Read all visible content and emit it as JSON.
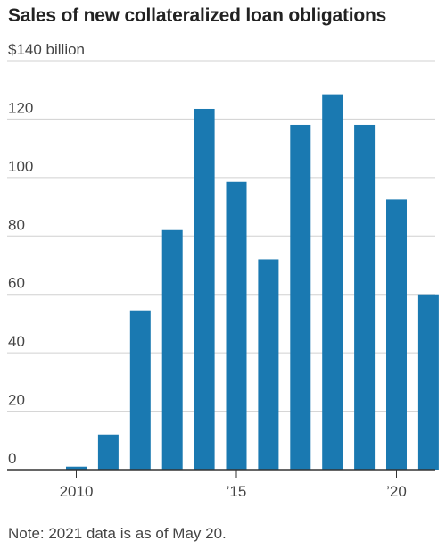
{
  "chart_data": {
    "type": "bar",
    "title": "Sales of new collateralized loan obligations",
    "unit_label": "$140 billion",
    "note": "Note: 2021 data is as of May 20.",
    "xlabel": "",
    "ylabel": "",
    "ylim": [
      0,
      140
    ],
    "y_ticks": [
      {
        "value": 0,
        "label": "0"
      },
      {
        "value": 20,
        "label": "20"
      },
      {
        "value": 40,
        "label": "40"
      },
      {
        "value": 60,
        "label": "60"
      },
      {
        "value": 80,
        "label": "80"
      },
      {
        "value": 100,
        "label": "100"
      },
      {
        "value": 120,
        "label": "120"
      },
      {
        "value": 140,
        "label": "$140 billion"
      }
    ],
    "categories": [
      "2010",
      "2011",
      "2012",
      "2013",
      "2014",
      "2015",
      "2016",
      "2017",
      "2018",
      "2019",
      "2020",
      "2021"
    ],
    "x_tick_labels": [
      {
        "category": "2010",
        "label": "2010"
      },
      {
        "category": "2015",
        "label": "’15"
      },
      {
        "category": "2020",
        "label": "’20"
      }
    ],
    "values": [
      1,
      12,
      54.5,
      82,
      123.5,
      98.5,
      72,
      118,
      128.5,
      118,
      92.5,
      60
    ],
    "bar_color": "#1a79b1",
    "gridline_color": "#d0d0d0",
    "baseline_color": "#333333",
    "grid": true
  }
}
